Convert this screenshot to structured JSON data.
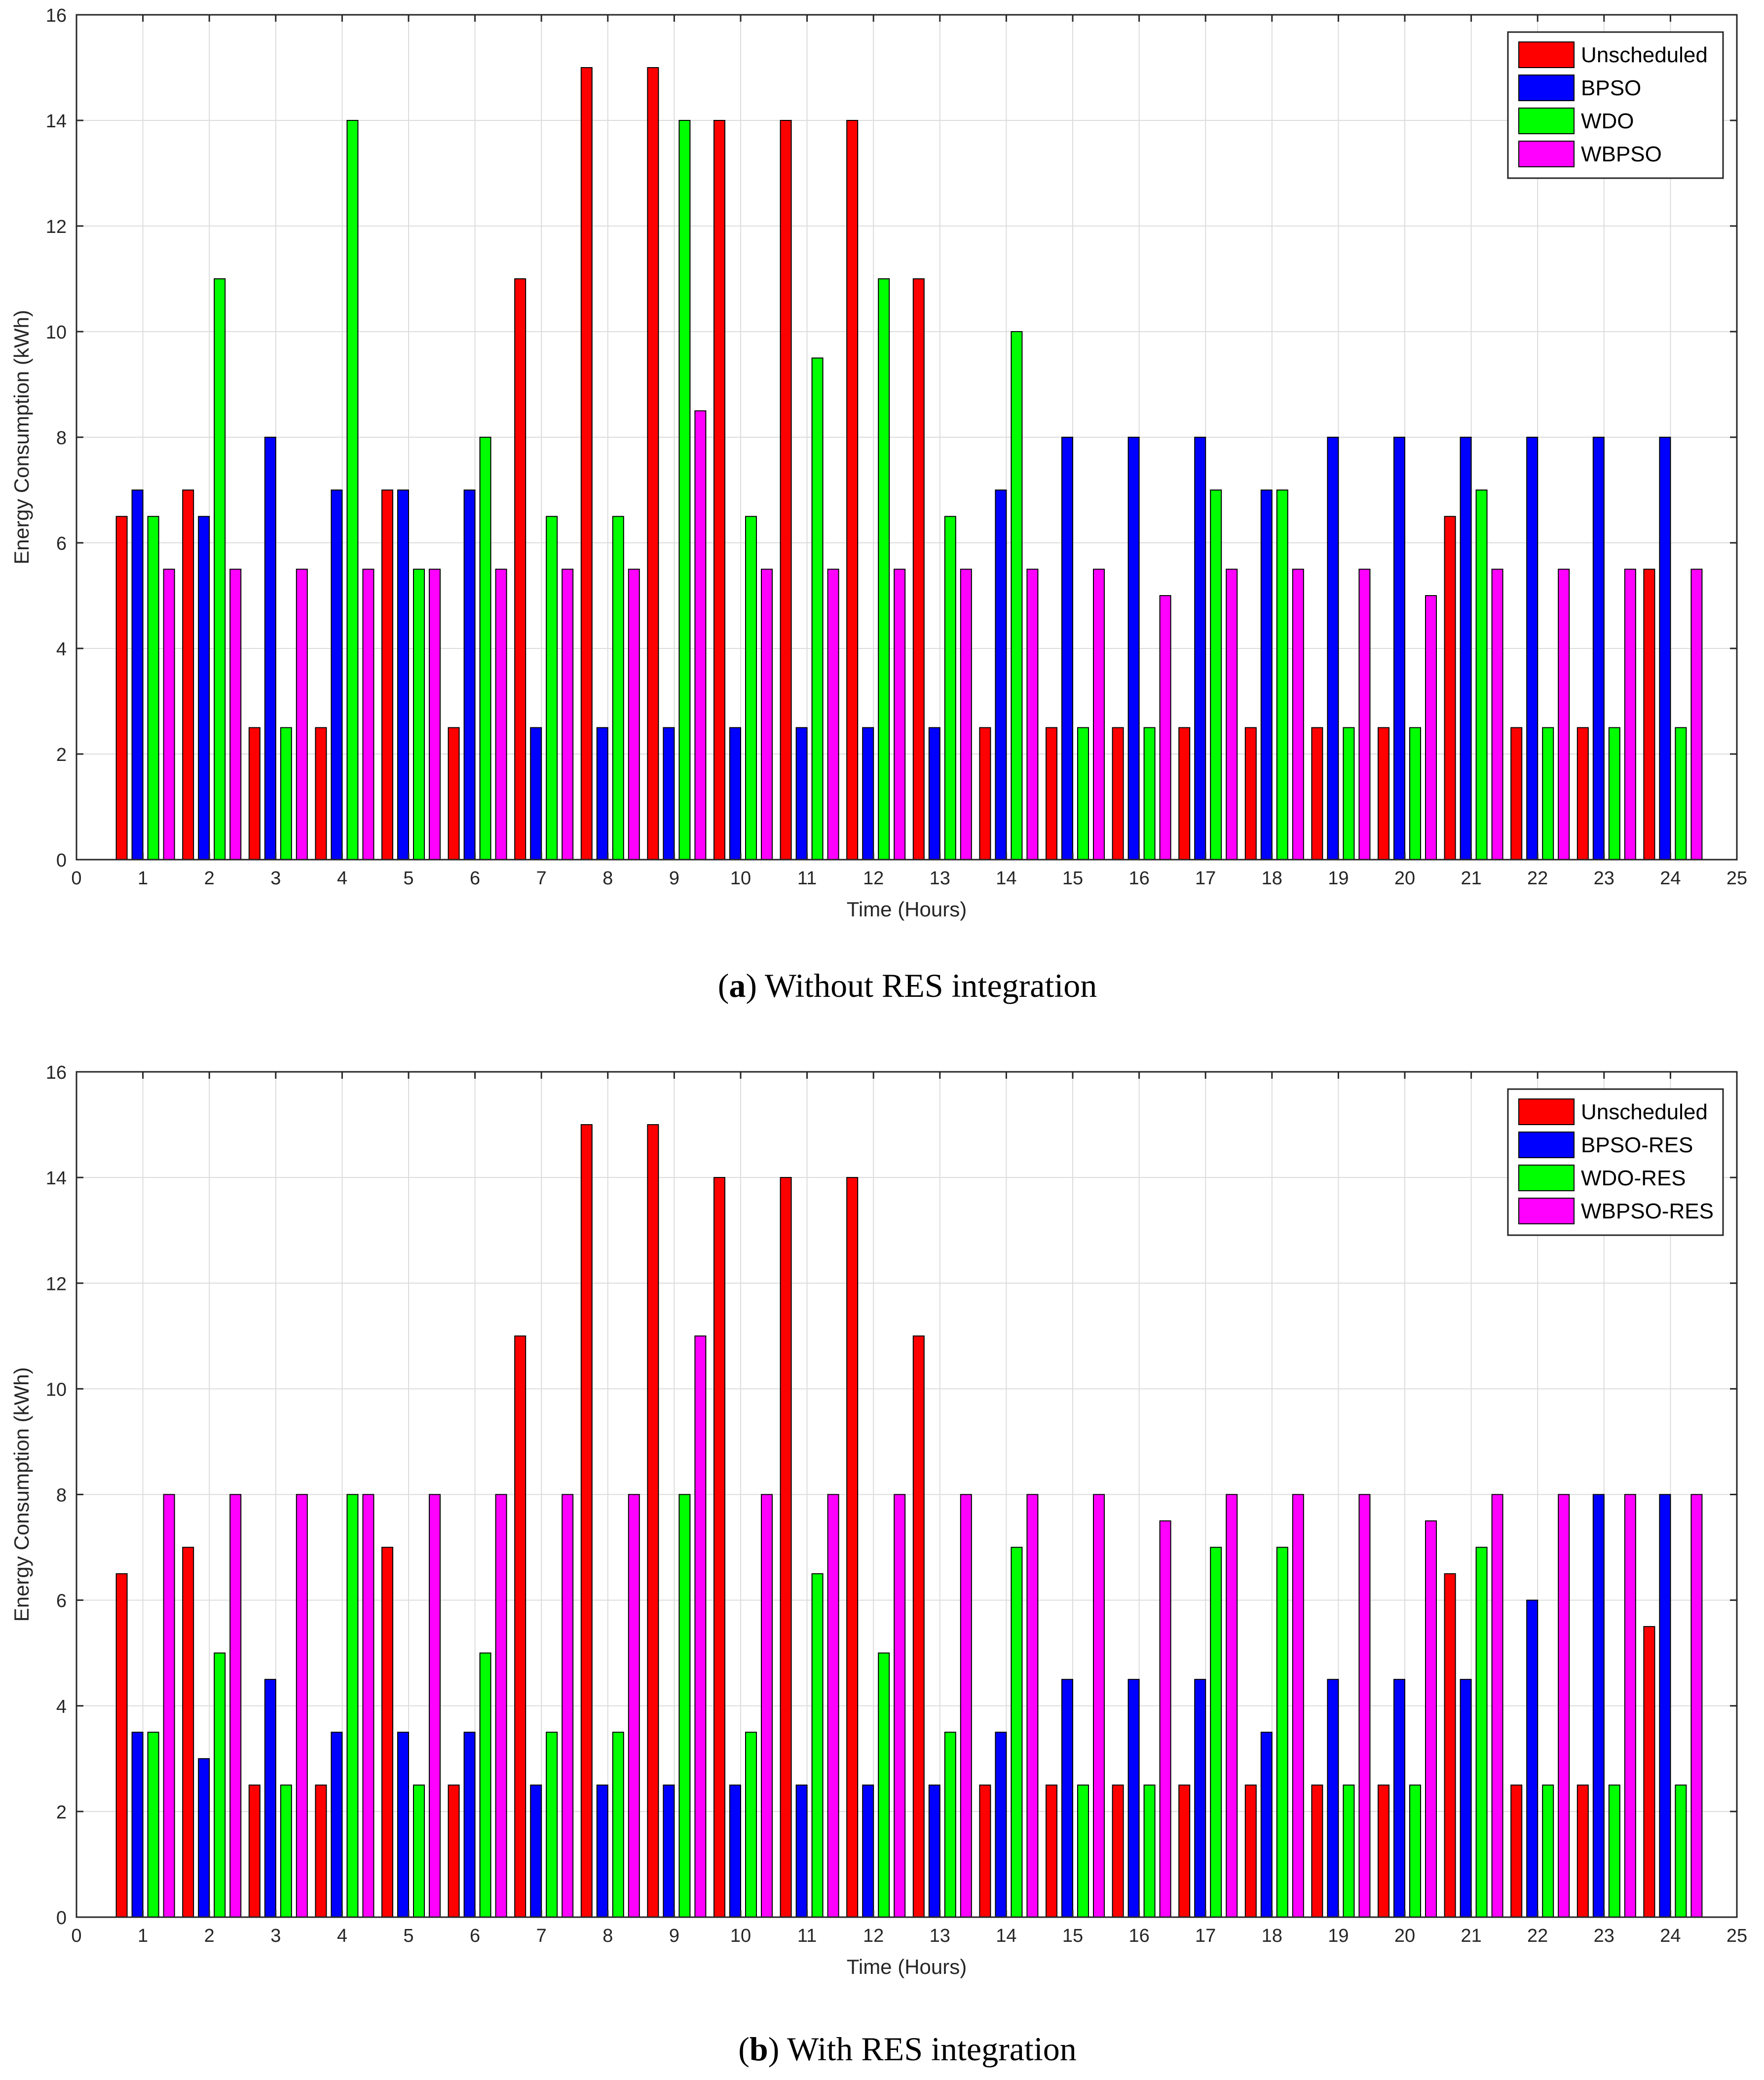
{
  "figure": {
    "panels": [
      {
        "caption_letter": "a",
        "caption_text": " Without RES integration"
      },
      {
        "caption_letter": "b",
        "caption_text": " With RES integration"
      }
    ]
  },
  "colors": {
    "series": [
      "#ff0000",
      "#0000ff",
      "#00ff00",
      "#ff00ff"
    ],
    "grid": "#dcdcdc",
    "axis": "#262626"
  },
  "chart_data": [
    {
      "type": "bar",
      "title": "",
      "xlabel": "Time (Hours)",
      "ylabel": "Energy Consumption (kWh)",
      "xlim": [
        0,
        25
      ],
      "ylim": [
        0,
        16
      ],
      "xticks": [
        0,
        1,
        2,
        3,
        4,
        5,
        6,
        7,
        8,
        9,
        10,
        11,
        12,
        13,
        14,
        15,
        16,
        17,
        18,
        19,
        20,
        21,
        22,
        23,
        24,
        25
      ],
      "yticks": [
        0,
        2,
        4,
        6,
        8,
        10,
        12,
        14,
        16
      ],
      "grid": true,
      "legend_position": "top-right",
      "categories": [
        1,
        2,
        3,
        4,
        5,
        6,
        7,
        8,
        9,
        10,
        11,
        12,
        13,
        14,
        15,
        16,
        17,
        18,
        19,
        20,
        21,
        22,
        23,
        24
      ],
      "series": [
        {
          "name": "Unscheduled",
          "values": [
            6.5,
            7,
            2.5,
            2.5,
            7,
            2.5,
            11,
            15,
            15,
            14,
            14,
            14,
            11,
            2.5,
            2.5,
            2.5,
            2.5,
            2.5,
            2.5,
            2.5,
            6.5,
            2.5,
            2.5,
            5.5
          ]
        },
        {
          "name": "BPSO",
          "values": [
            7,
            6.5,
            8,
            7,
            7,
            7,
            2.5,
            2.5,
            2.5,
            2.5,
            2.5,
            2.5,
            2.5,
            7,
            8,
            8,
            8,
            7,
            8,
            8,
            8,
            8,
            8,
            8
          ]
        },
        {
          "name": "WDO",
          "values": [
            6.5,
            11,
            2.5,
            14,
            5.5,
            8,
            6.5,
            6.5,
            14,
            6.5,
            9.5,
            11,
            6.5,
            10,
            2.5,
            2.5,
            7,
            7,
            2.5,
            2.5,
            7,
            2.5,
            2.5,
            2.5
          ]
        },
        {
          "name": "WBPSO",
          "values": [
            5.5,
            5.5,
            5.5,
            5.5,
            5.5,
            5.5,
            5.5,
            5.5,
            8.5,
            5.5,
            5.5,
            5.5,
            5.5,
            5.5,
            5.5,
            5,
            5.5,
            5.5,
            5.5,
            5,
            5.5,
            5.5,
            5.5,
            5.5
          ]
        }
      ]
    },
    {
      "type": "bar",
      "title": "",
      "xlabel": "Time (Hours)",
      "ylabel": "Energy Consumption (kWh)",
      "xlim": [
        0,
        25
      ],
      "ylim": [
        0,
        16
      ],
      "xticks": [
        0,
        1,
        2,
        3,
        4,
        5,
        6,
        7,
        8,
        9,
        10,
        11,
        12,
        13,
        14,
        15,
        16,
        17,
        18,
        19,
        20,
        21,
        22,
        23,
        24,
        25
      ],
      "yticks": [
        0,
        2,
        4,
        6,
        8,
        10,
        12,
        14,
        16
      ],
      "grid": true,
      "legend_position": "top-right",
      "categories": [
        1,
        2,
        3,
        4,
        5,
        6,
        7,
        8,
        9,
        10,
        11,
        12,
        13,
        14,
        15,
        16,
        17,
        18,
        19,
        20,
        21,
        22,
        23,
        24
      ],
      "series": [
        {
          "name": "Unscheduled",
          "values": [
            6.5,
            7,
            2.5,
            2.5,
            7,
            2.5,
            11,
            15,
            15,
            14,
            14,
            14,
            11,
            2.5,
            2.5,
            2.5,
            2.5,
            2.5,
            2.5,
            2.5,
            6.5,
            2.5,
            2.5,
            5.5
          ]
        },
        {
          "name": "BPSO-RES",
          "values": [
            3.5,
            3,
            4.5,
            3.5,
            3.5,
            3.5,
            2.5,
            2.5,
            2.5,
            2.5,
            2.5,
            2.5,
            2.5,
            3.5,
            4.5,
            4.5,
            4.5,
            3.5,
            4.5,
            4.5,
            4.5,
            6,
            8,
            8
          ]
        },
        {
          "name": "WDO-RES",
          "values": [
            3.5,
            5,
            2.5,
            8,
            2.5,
            5,
            3.5,
            3.5,
            8,
            3.5,
            6.5,
            5,
            3.5,
            7,
            2.5,
            2.5,
            7,
            7,
            2.5,
            2.5,
            7,
            2.5,
            2.5,
            2.5
          ]
        },
        {
          "name": "WBPSO-RES",
          "values": [
            8,
            8,
            8,
            8,
            8,
            8,
            8,
            8,
            11,
            8,
            8,
            8,
            8,
            8,
            8,
            7.5,
            8,
            8,
            8,
            7.5,
            8,
            8,
            8,
            8
          ]
        }
      ]
    }
  ]
}
